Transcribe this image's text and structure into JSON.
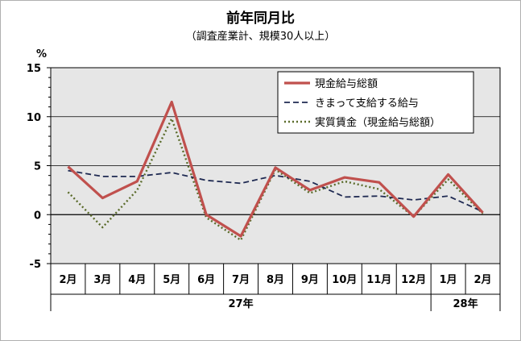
{
  "chart_data": {
    "type": "line",
    "title": "前年同月比",
    "subtitle": "（調査産業計、規模30人以上）",
    "ylabel": "%",
    "ylim": [
      -5,
      15
    ],
    "yticks": [
      -5,
      0,
      5,
      10,
      15
    ],
    "grid": true,
    "legend_position": "top-right",
    "categories": [
      "2月",
      "3月",
      "4月",
      "5月",
      "6月",
      "7月",
      "8月",
      "9月",
      "10月",
      "11月",
      "12月",
      "1月",
      "2月"
    ],
    "year_groups": [
      {
        "label": "27年",
        "start": 0,
        "end": 10
      },
      {
        "label": "28年",
        "start": 11,
        "end": 12
      }
    ],
    "series": [
      {
        "name": "現金給与総額",
        "color": "#c0504d",
        "style": "solid",
        "values": [
          4.9,
          1.7,
          3.4,
          11.5,
          0.0,
          -2.2,
          4.8,
          2.5,
          3.8,
          3.3,
          -0.2,
          4.1,
          0.2
        ]
      },
      {
        "name": "きまって支給する給与",
        "color": "#1f2a52",
        "style": "dashed",
        "values": [
          4.5,
          3.9,
          3.9,
          4.3,
          3.5,
          3.2,
          4.0,
          3.4,
          1.8,
          1.9,
          1.5,
          1.9,
          0.3
        ]
      },
      {
        "name": "実質賃金（現金給与総額）",
        "color": "#5a6b2a",
        "style": "dotted",
        "values": [
          2.3,
          -1.3,
          2.5,
          9.8,
          -0.3,
          -2.6,
          4.6,
          2.2,
          3.4,
          2.6,
          -0.2,
          3.6,
          0.1
        ]
      }
    ]
  }
}
